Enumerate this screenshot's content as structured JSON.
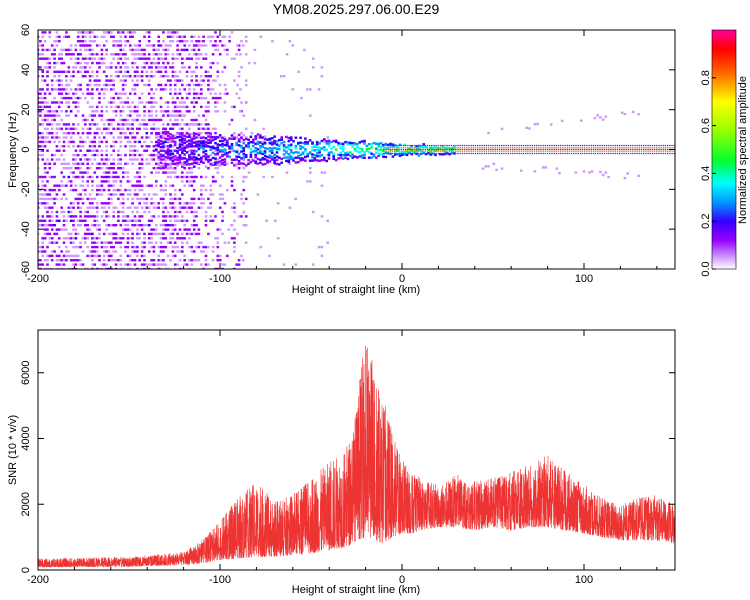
{
  "title": "YM08.2025.297.06.00.E29",
  "chart_data": [
    {
      "type": "heatmap",
      "xlabel": "Height of straight line (km)",
      "ylabel": "Frequency (Hz)",
      "xlim": [
        -200,
        150
      ],
      "ylim": [
        -60,
        60
      ],
      "x_ticks": [
        -200,
        -100,
        0,
        100
      ],
      "y_ticks": [
        -60,
        -40,
        -20,
        0,
        20,
        40,
        60
      ],
      "colorbar": {
        "label": "Normalized spectral amplitude",
        "range": [
          0,
          1
        ],
        "ticks": [
          0.0,
          0.2,
          0.4,
          0.6,
          0.8
        ],
        "tick_labels": [
          "0.0",
          "0.2",
          "0.4",
          "0.6",
          "0.8"
        ],
        "colormap": [
          "#ffffff",
          "#cc99ff",
          "#9900ff",
          "#3300ff",
          "#0099ff",
          "#00ffff",
          "#00ff33",
          "#99ff00",
          "#ffff00",
          "#ff6600",
          "#ff0000",
          "#ff0099"
        ]
      },
      "features": {
        "noise_band_x": [
          -200,
          -90
        ],
        "carrier_line_x": [
          -10,
          150
        ],
        "carrier_frequency": 0,
        "sidebands_freq": [
          10,
          -10
        ]
      }
    },
    {
      "type": "line",
      "xlabel": "Height of straight line (km)",
      "ylabel": "SNR (10 * v/v)",
      "xlim": [
        -200,
        150
      ],
      "ylim": [
        0,
        7300
      ],
      "x_ticks": [
        -200,
        -100,
        0,
        100
      ],
      "y_ticks": [
        0,
        2000,
        4000,
        6000
      ],
      "color": "#ee3333",
      "envelope_x": [
        -200,
        -150,
        -120,
        -110,
        -100,
        -90,
        -80,
        -70,
        -60,
        -50,
        -40,
        -30,
        -25,
        -20,
        -15,
        -10,
        -5,
        0,
        5,
        10,
        20,
        30,
        40,
        50,
        60,
        70,
        80,
        90,
        100,
        110,
        120,
        130,
        140,
        150
      ],
      "envelope_max": [
        350,
        400,
        550,
        900,
        1500,
        2200,
        2700,
        2100,
        2300,
        2800,
        3300,
        3800,
        5000,
        7200,
        6200,
        5200,
        4200,
        3400,
        3000,
        2800,
        2600,
        2900,
        2700,
        2800,
        3000,
        3200,
        3500,
        3000,
        2600,
        2200,
        2000,
        2200,
        2300,
        2000
      ],
      "envelope_min": [
        80,
        100,
        150,
        200,
        300,
        350,
        400,
        400,
        450,
        500,
        600,
        700,
        900,
        1000,
        900,
        800,
        1000,
        1100,
        1100,
        1200,
        1300,
        1300,
        1200,
        1300,
        1200,
        1300,
        1300,
        1200,
        1100,
        1000,
        900,
        900,
        900,
        800
      ]
    }
  ]
}
